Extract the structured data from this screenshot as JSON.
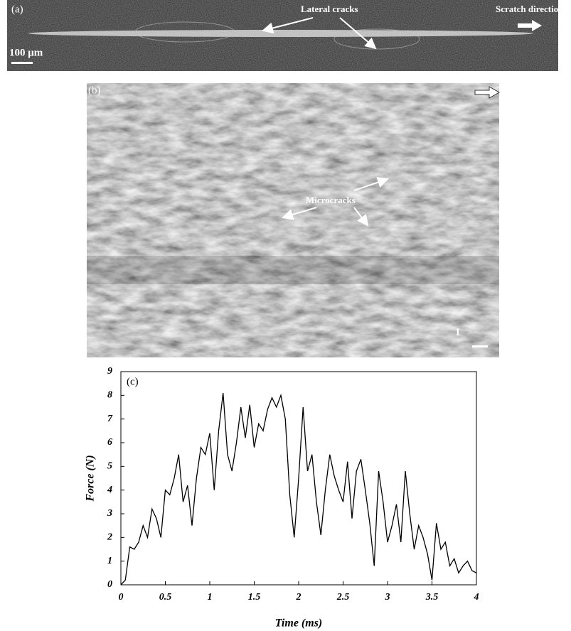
{
  "panel_a": {
    "label": "(a)",
    "annotation": "Lateral cracks",
    "direction": "Scratch direction",
    "scale_bar": "100 μm"
  },
  "panel_b": {
    "label": "(b)",
    "annotation": "Microcracks",
    "scale_bar": "1"
  },
  "chart_data": {
    "type": "line",
    "title": "(c)",
    "x_label": "Time (ms)",
    "y_label": "Force (N)",
    "x": [
      0,
      0.05,
      0.1,
      0.15,
      0.2,
      0.25,
      0.3,
      0.35,
      0.4,
      0.45,
      0.5,
      0.55,
      0.6,
      0.65,
      0.7,
      0.75,
      0.8,
      0.85,
      0.9,
      0.95,
      1,
      1.05,
      1.1,
      1.15,
      1.2,
      1.25,
      1.3,
      1.35,
      1.4,
      1.45,
      1.5,
      1.55,
      1.6,
      1.65,
      1.7,
      1.75,
      1.8,
      1.85,
      1.9,
      1.95,
      2,
      2.05,
      2.1,
      2.15,
      2.2,
      2.25,
      2.3,
      2.35,
      2.4,
      2.45,
      2.5,
      2.55,
      2.6,
      2.65,
      2.7,
      2.75,
      2.8,
      2.85,
      2.9,
      2.95,
      3,
      3.05,
      3.1,
      3.15,
      3.2,
      3.25,
      3.3,
      3.35,
      3.4,
      3.45,
      3.5,
      3.55,
      3.6,
      3.65,
      3.7,
      3.75,
      3.8,
      3.85,
      3.9,
      3.95,
      4
    ],
    "series": [
      {
        "color": "#000000",
        "values": [
          0,
          0.2,
          1.6,
          1.5,
          1.8,
          2.5,
          2.0,
          3.2,
          2.8,
          2.0,
          4.0,
          3.8,
          4.5,
          5.5,
          3.5,
          4.2,
          2.5,
          4.5,
          5.8,
          5.5,
          6.4,
          4.0,
          6.5,
          8.1,
          5.5,
          4.8,
          6.0,
          7.5,
          6.2,
          7.6,
          5.8,
          6.8,
          6.5,
          7.4,
          7.9,
          7.5,
          8.0,
          7.0,
          3.8,
          2.0,
          4.5,
          7.5,
          4.8,
          5.5,
          3.5,
          2.1,
          4.0,
          5.5,
          4.6,
          4.0,
          3.5,
          5.2,
          2.8,
          4.8,
          5.3,
          4.0,
          2.6,
          0.8,
          4.8,
          3.5,
          1.8,
          2.5,
          3.4,
          1.8,
          4.8,
          3.0,
          1.5,
          2.5,
          2.0,
          1.3,
          0.2,
          2.6,
          1.5,
          1.8,
          0.8,
          1.1,
          0.5,
          0.8,
          1.0,
          0.6,
          0.5
        ]
      }
    ],
    "xlim": [
      0,
      4
    ],
    "ylim": [
      0,
      9
    ],
    "xticks": [
      0,
      0.5,
      1,
      1.5,
      2,
      2.5,
      3,
      3.5,
      4
    ],
    "yticks": [
      0,
      1,
      2,
      3,
      4,
      5,
      6,
      7,
      8,
      9
    ]
  }
}
